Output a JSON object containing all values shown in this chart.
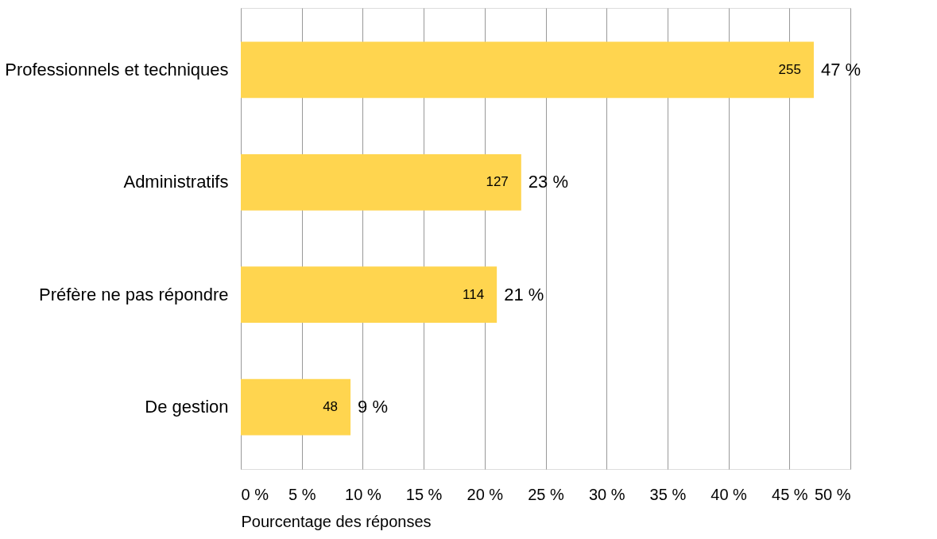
{
  "chart_data": {
    "type": "bar",
    "orientation": "horizontal",
    "xlabel": "Pourcentage des réponses",
    "categories": [
      "Professionnels et techniques",
      "Administratifs",
      "Préfère ne pas répondre",
      "De gestion"
    ],
    "values": [
      47,
      23,
      21,
      9
    ],
    "color": "#ffd54f",
    "value_labels": [
      "47 %",
      "23 %",
      "21 %",
      "9 %"
    ],
    "annotations": [
      {
        "text": "255",
        "x": 47,
        "y": "Professionnels et techniques"
      },
      {
        "text": "127",
        "x": 23,
        "y": "Administratifs"
      },
      {
        "text": "114",
        "x": 21,
        "y": "Préfère ne pas répondre"
      },
      {
        "text": "48",
        "x": 9,
        "y": "De gestion"
      }
    ],
    "xlim": [
      0,
      50
    ],
    "xticks": [
      {
        "value": 0,
        "label": "0 %"
      },
      {
        "value": 5,
        "label": "5 %"
      },
      {
        "value": 10,
        "label": "10 %"
      },
      {
        "value": 15,
        "label": "15 %"
      },
      {
        "value": 20,
        "label": "20 %"
      },
      {
        "value": 25,
        "label": "25 %"
      },
      {
        "value": 30,
        "label": "30 %"
      },
      {
        "value": 35,
        "label": "35 %"
      },
      {
        "value": 40,
        "label": "40 %"
      },
      {
        "value": 45,
        "label": "45 %"
      },
      {
        "value": 50,
        "label": "50 %"
      }
    ],
    "grid": "x"
  }
}
